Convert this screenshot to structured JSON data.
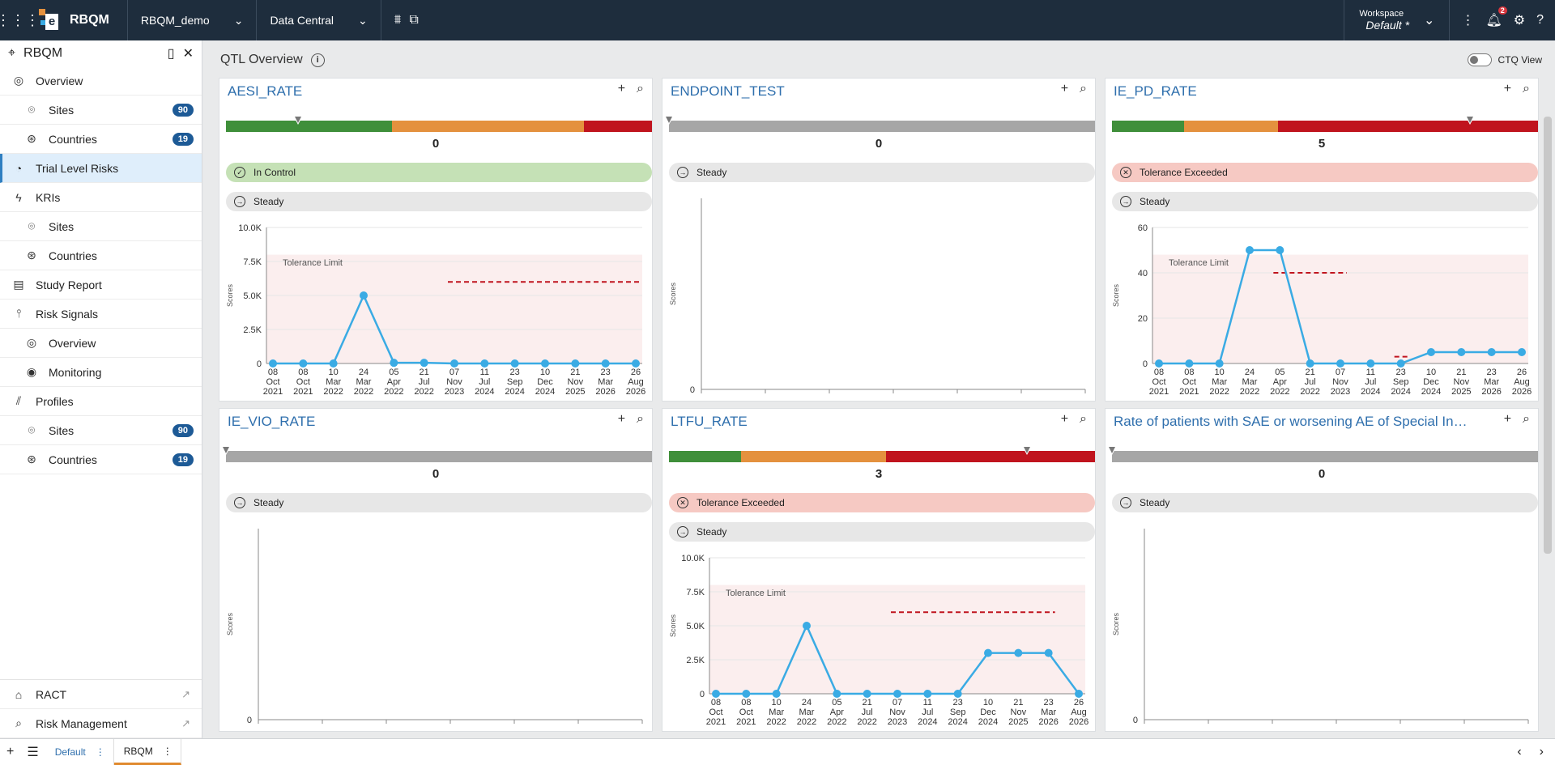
{
  "topbar": {
    "brand": "RBQM",
    "study": "RBQM_demo",
    "module": "Data Central",
    "workspace_label": "Workspace",
    "workspace_value": "Default",
    "workspace_star": "*",
    "notif_count": "2"
  },
  "sidebar": {
    "title": "RBQM",
    "items": [
      {
        "label": "Overview",
        "icon": "globe-icon",
        "sub": false
      },
      {
        "label": "Sites",
        "icon": "location-icon",
        "sub": true,
        "count": "90"
      },
      {
        "label": "Countries",
        "icon": "countries-icon",
        "sub": true,
        "count": "19"
      },
      {
        "label": "Trial Level Risks",
        "icon": "gauge-icon",
        "sub": false,
        "active": true
      },
      {
        "label": "KRIs",
        "icon": "bolt-icon",
        "sub": false
      },
      {
        "label": "Sites",
        "icon": "location-icon",
        "sub": true
      },
      {
        "label": "Countries",
        "icon": "countries-icon",
        "sub": true
      },
      {
        "label": "Study Report",
        "icon": "document-icon",
        "sub": false
      },
      {
        "label": "Risk Signals",
        "icon": "signal-icon",
        "sub": false
      },
      {
        "label": "Overview",
        "icon": "globe-icon",
        "sub": true
      },
      {
        "label": "Monitoring",
        "icon": "eye-icon",
        "sub": true
      },
      {
        "label": "Profiles",
        "icon": "chart-icon",
        "sub": false
      },
      {
        "label": "Sites",
        "icon": "location-icon",
        "sub": true,
        "count": "90"
      },
      {
        "label": "Countries",
        "icon": "countries-icon",
        "sub": true,
        "count": "19"
      }
    ],
    "bottom": [
      {
        "label": "RACT"
      },
      {
        "label": "Risk Management"
      }
    ]
  },
  "main": {
    "title": "QTL Overview",
    "ctq_label": "CTQ View"
  },
  "cards": [
    {
      "title": "AESI_RATE",
      "value": "0",
      "gauge": "tri1",
      "pills": [
        {
          "text": "In Control",
          "style": "green"
        },
        {
          "text": "Steady",
          "style": "grey"
        }
      ]
    },
    {
      "title": "ENDPOINT_TEST",
      "value": "0",
      "gauge": "grey",
      "pills": [
        {
          "text": "Steady",
          "style": "grey"
        }
      ]
    },
    {
      "title": "IE_PD_RATE",
      "value": "5",
      "gauge": "tri2",
      "pills": [
        {
          "text": "Tolerance Exceeded",
          "style": "red"
        },
        {
          "text": "Steady",
          "style": "grey"
        }
      ]
    },
    {
      "title": "IE_VIO_RATE",
      "value": "0",
      "gauge": "grey",
      "pills": [
        {
          "text": "Steady",
          "style": "grey"
        }
      ]
    },
    {
      "title": "LTFU_RATE",
      "value": "3",
      "gauge": "tri3",
      "pills": [
        {
          "text": "Tolerance Exceeded",
          "style": "red"
        },
        {
          "text": "Steady",
          "style": "grey"
        }
      ]
    },
    {
      "title": "Rate of patients with SAE or worsening AE of Special Interest",
      "value": "0",
      "gauge": "grey",
      "pills": [
        {
          "text": "Steady",
          "style": "grey"
        }
      ]
    }
  ],
  "chart_data": [
    {
      "type": "line",
      "panel": "AESI_RATE",
      "ylabel": "Scores",
      "yticks": [
        "0",
        "2.5K",
        "5.0K",
        "7.5K",
        "10.0K"
      ],
      "ylim": [
        0,
        10000
      ],
      "annotation": "Tolerance Limit",
      "x": [
        "08 Oct 2021",
        "08 Oct 2021",
        "10 Mar 2022",
        "24 Mar 2022",
        "05 Apr 2022",
        "21 Jul 2022",
        "07 Nov 2023",
        "11 Jul 2024",
        "23 Sep 2024",
        "10 Dec 2024",
        "21 Nov 2025",
        "23 Mar 2026",
        "26 Aug 2026"
      ],
      "series": [
        {
          "values": [
            0,
            0,
            0,
            5000,
            50,
            50,
            0,
            0,
            0,
            0,
            0,
            0,
            0
          ]
        }
      ],
      "limit": [
        null,
        null,
        null,
        null,
        null,
        null,
        6000,
        6000,
        6000,
        6000,
        6000,
        6000,
        6000
      ]
    },
    {
      "type": "line",
      "panel": "ENDPOINT_TEST",
      "ylabel": "Scores",
      "yticks": [
        "0"
      ],
      "x": [],
      "series": []
    },
    {
      "type": "line",
      "panel": "IE_PD_RATE",
      "ylabel": "Scores",
      "yticks": [
        "0",
        "20",
        "40",
        "60"
      ],
      "ylim": [
        0,
        60
      ],
      "annotation": "Tolerance Limit",
      "x": [
        "08 Oct 2021",
        "08 Oct 2021",
        "10 Mar 2022",
        "24 Mar 2022",
        "05 Apr 2022",
        "21 Jul 2022",
        "07 Nov 2023",
        "11 Jul 2024",
        "23 Sep 2024",
        "10 Dec 2024",
        "21 Nov 2025",
        "23 Mar 2026",
        "26 Aug 2026"
      ],
      "series": [
        {
          "values": [
            0,
            0,
            0,
            50,
            50,
            0,
            0,
            0,
            0,
            5,
            5,
            5,
            5
          ]
        }
      ],
      "limit": [
        null,
        null,
        null,
        null,
        40,
        40,
        40,
        null,
        3,
        null,
        null,
        null,
        null
      ]
    },
    {
      "type": "line",
      "panel": "IE_VIO_RATE",
      "ylabel": "Scores",
      "yticks": [
        "0"
      ],
      "x": [],
      "series": []
    },
    {
      "type": "line",
      "panel": "LTFU_RATE",
      "ylabel": "Scores",
      "yticks": [
        "0",
        "2.5K",
        "5.0K",
        "7.5K",
        "10.0K"
      ],
      "ylim": [
        0,
        10000
      ],
      "annotation": "Tolerance Limit",
      "x": [
        "08 Oct 2021",
        "08 Oct 2021",
        "10 Mar 2022",
        "24 Mar 2022",
        "05 Apr 2022",
        "21 Jul 2022",
        "07 Nov 2023",
        "11 Jul 2024",
        "23 Sep 2024",
        "10 Dec 2024",
        "21 Nov 2025",
        "23 Mar 2026",
        "26 Aug 2026"
      ],
      "series": [
        {
          "values": [
            0,
            0,
            0,
            5000,
            0,
            0,
            0,
            0,
            0,
            3000,
            3000,
            3000,
            0
          ]
        }
      ],
      "limit": [
        null,
        null,
        null,
        null,
        null,
        null,
        6000,
        6000,
        6000,
        6000,
        6000,
        6000,
        null
      ]
    },
    {
      "type": "line",
      "panel": "Rate of patients with SAE or worsening AE of Special Interest",
      "ylabel": "Scores",
      "yticks": [
        "0"
      ],
      "x": [],
      "series": []
    }
  ],
  "colors": {
    "green": "#3f8f3a",
    "orange": "#e4913e",
    "red": "#c0141e",
    "grey": "#a6a6a6",
    "line": "#3aabe4",
    "limit": "#c0141e"
  },
  "bottombar": {
    "tabs": [
      {
        "label": "Default"
      },
      {
        "label": "RBQM"
      }
    ]
  }
}
